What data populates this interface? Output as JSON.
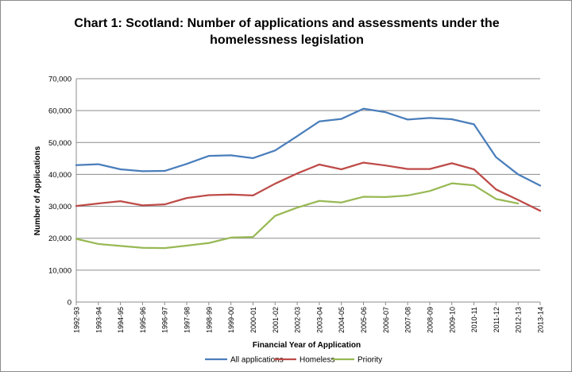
{
  "chart_data": {
    "type": "line",
    "title": {
      "line1": "Chart 1:   Scotland:  Number of applications and assessments under the",
      "line2": "homelessness legislation"
    },
    "xlabel": "Financial Year of Application",
    "ylabel": "Number of Applications",
    "ylim": [
      0,
      70000
    ],
    "yticks": [
      "0",
      "10,000",
      "20,000",
      "30,000",
      "40,000",
      "50,000",
      "60,000",
      "70,000"
    ],
    "grid": true,
    "legend_position": "bottom",
    "categories": [
      "1992-93",
      "1993-94",
      "1994-95",
      "1995-96",
      "1996-97",
      "1997-98",
      "1998-99",
      "1999-00",
      "2000-01",
      "2001-02",
      "2002-03",
      "2003-04",
      "2004-05",
      "2005-06",
      "2006-07",
      "2007-08",
      "2008-09",
      "2009-10",
      "2010-11",
      "2011-12",
      "2012-13",
      "2013-14"
    ],
    "series": [
      {
        "name": "All applications",
        "color": "#4a7ebb",
        "values": [
          42900,
          43200,
          41600,
          41000,
          41100,
          43300,
          45800,
          46000,
          45100,
          47500,
          52000,
          56600,
          57400,
          60600,
          59500,
          57200,
          57700,
          57300,
          55700,
          45400,
          40000,
          36500
        ]
      },
      {
        "name": "Homeless",
        "color": "#be4b48",
        "values": [
          30100,
          30900,
          31600,
          30300,
          30600,
          32600,
          33500,
          33700,
          33400,
          37100,
          40300,
          43100,
          41600,
          43700,
          42800,
          41700,
          41700,
          43500,
          41600,
          35300,
          32000,
          28600
        ]
      },
      {
        "name": "Priority",
        "color": "#98b954",
        "values": [
          19800,
          18200,
          17600,
          17000,
          16900,
          17700,
          18500,
          20200,
          20400,
          27000,
          29600,
          31700,
          31200,
          33000,
          32900,
          33400,
          34800,
          37200,
          36600,
          32300,
          30900,
          null
        ]
      }
    ]
  }
}
